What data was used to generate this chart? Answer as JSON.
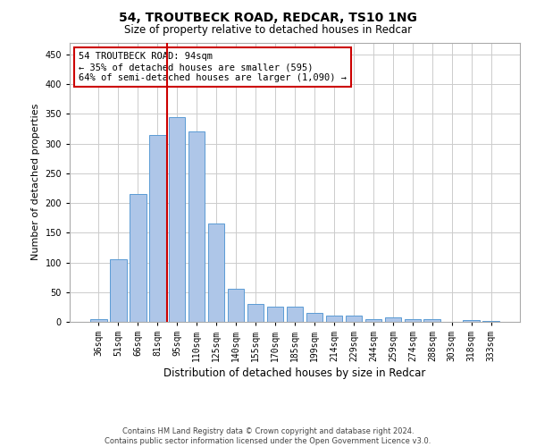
{
  "title1": "54, TROUTBECK ROAD, REDCAR, TS10 1NG",
  "title2": "Size of property relative to detached houses in Redcar",
  "xlabel": "Distribution of detached houses by size in Redcar",
  "ylabel": "Number of detached properties",
  "categories": [
    "36sqm",
    "51sqm",
    "66sqm",
    "81sqm",
    "95sqm",
    "110sqm",
    "125sqm",
    "140sqm",
    "155sqm",
    "170sqm",
    "185sqm",
    "199sqm",
    "214sqm",
    "229sqm",
    "244sqm",
    "259sqm",
    "274sqm",
    "288sqm",
    "303sqm",
    "318sqm",
    "333sqm"
  ],
  "values": [
    5,
    105,
    215,
    315,
    345,
    320,
    165,
    55,
    30,
    25,
    25,
    15,
    10,
    10,
    5,
    8,
    5,
    5,
    0,
    3,
    2
  ],
  "bar_color": "#aec6e8",
  "bar_edge_color": "#5b9bd5",
  "annotation_text1": "54 TROUTBECK ROAD: 94sqm",
  "annotation_text2": "← 35% of detached houses are smaller (595)",
  "annotation_text3": "64% of semi-detached houses are larger (1,090) →",
  "annotation_box_facecolor": "#ffffff",
  "annotation_box_edgecolor": "#cc0000",
  "vline_color": "#cc0000",
  "vline_x_index": 4,
  "footer1": "Contains HM Land Registry data © Crown copyright and database right 2024.",
  "footer2": "Contains public sector information licensed under the Open Government Licence v3.0.",
  "ylim": [
    0,
    470
  ],
  "yticks": [
    0,
    50,
    100,
    150,
    200,
    250,
    300,
    350,
    400,
    450
  ],
  "grid_color": "#cccccc",
  "title1_fontsize": 10,
  "title2_fontsize": 8.5,
  "ylabel_fontsize": 8,
  "xlabel_fontsize": 8.5,
  "tick_fontsize": 7,
  "footer_fontsize": 6,
  "ann_fontsize": 7.5
}
